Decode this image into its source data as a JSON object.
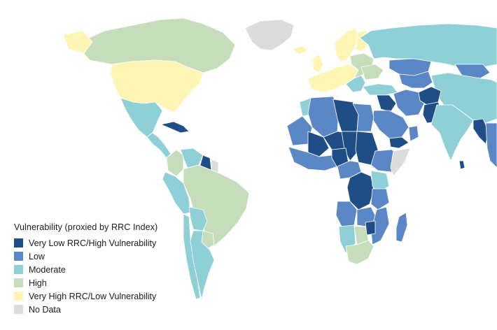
{
  "legend": {
    "title": "Vulnerability (proxied by RRC Index)",
    "items": [
      {
        "label": "Very Low RRC/High Vulnerability",
        "color": "#1f4e86"
      },
      {
        "label": "Low",
        "color": "#5b87c7"
      },
      {
        "label": "Moderate",
        "color": "#8fcfd6"
      },
      {
        "label": "High",
        "color": "#c6ddbb"
      },
      {
        "label": "Very High RRC/Low Vulnerability",
        "color": "#fdf5b4"
      },
      {
        "label": "No Data",
        "color": "#dcdcdc"
      }
    ]
  },
  "colors": {
    "very_low": "#1f4e86",
    "low": "#5b87c7",
    "moderate": "#8fcfd6",
    "high": "#c6ddbb",
    "very_high": "#fdf5b4",
    "no_data": "#dcdcdc"
  }
}
